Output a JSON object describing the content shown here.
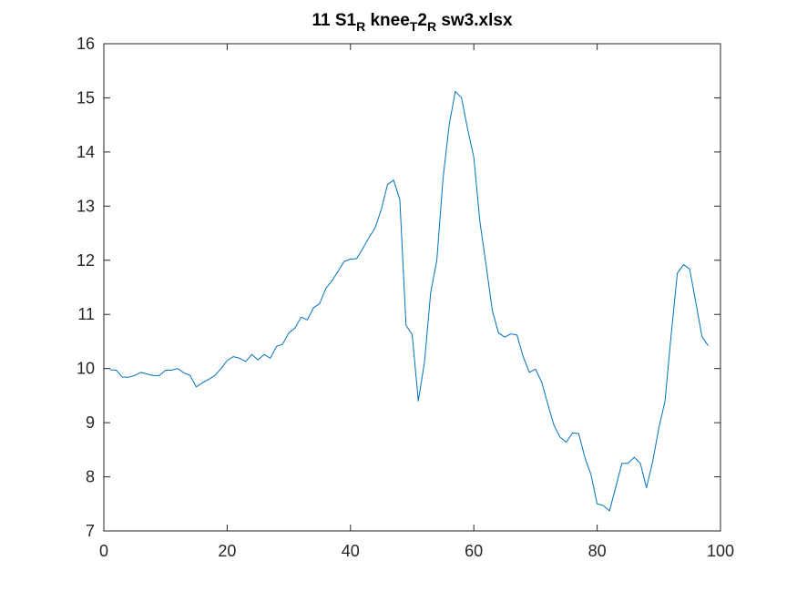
{
  "chart_data": {
    "type": "line",
    "title": {
      "parts": [
        {
          "text": "11 S1",
          "sub": false
        },
        {
          "text": "R",
          "sub": true
        },
        {
          "text": " knee",
          "sub": false
        },
        {
          "text": "T",
          "sub": true
        },
        {
          "text": "2",
          "sub": false
        },
        {
          "text": "R",
          "sub": true
        },
        {
          "text": " sw3.xlsx",
          "sub": false
        }
      ]
    },
    "xlabel": "",
    "ylabel": "",
    "xlim": [
      0,
      100
    ],
    "ylim": [
      7,
      16
    ],
    "xticks": [
      0,
      20,
      40,
      60,
      80,
      100
    ],
    "yticks": [
      7,
      8,
      9,
      10,
      11,
      12,
      13,
      14,
      15,
      16
    ],
    "grid": false,
    "line_color": "#0072BD",
    "axes_color": "#262626",
    "series": [
      {
        "x": [
          1,
          2,
          3,
          4,
          5,
          6,
          7,
          8,
          9,
          10,
          11,
          12,
          13,
          14,
          15,
          16,
          17,
          18,
          19,
          20,
          21,
          22,
          23,
          24,
          25,
          26,
          27,
          28,
          29,
          30,
          31,
          32,
          33,
          34,
          35,
          36,
          37,
          38,
          39,
          40,
          41,
          42,
          43,
          44,
          45,
          46,
          47,
          48,
          49,
          50,
          51,
          52,
          53,
          54,
          55,
          56,
          57,
          58,
          59,
          60,
          61,
          62,
          63,
          64,
          65,
          66,
          67,
          68,
          69,
          70,
          71,
          72,
          73,
          74,
          75,
          76,
          77,
          78,
          79,
          80,
          81,
          82,
          83,
          84,
          85,
          86,
          87,
          88,
          89,
          90,
          91,
          92,
          93,
          94,
          95,
          96,
          97,
          98
        ],
        "y": [
          9.98,
          9.97,
          9.84,
          9.84,
          9.87,
          9.93,
          9.9,
          9.87,
          9.87,
          9.97,
          9.97,
          10.0,
          9.92,
          9.87,
          9.66,
          9.74,
          9.8,
          9.87,
          10.0,
          10.15,
          10.22,
          10.19,
          10.13,
          10.26,
          10.16,
          10.26,
          10.19,
          10.41,
          10.45,
          10.66,
          10.75,
          10.95,
          10.9,
          11.12,
          11.2,
          11.48,
          11.62,
          11.8,
          11.98,
          12.02,
          12.03,
          12.22,
          12.42,
          12.6,
          12.94,
          13.4,
          13.48,
          13.12,
          10.8,
          10.63,
          9.4,
          10.12,
          11.4,
          12.0,
          13.5,
          14.5,
          15.12,
          15.0,
          14.42,
          13.9,
          12.7,
          11.9,
          11.07,
          10.66,
          10.58,
          10.64,
          10.62,
          10.22,
          9.93,
          9.99,
          9.75,
          9.34,
          8.95,
          8.73,
          8.64,
          8.81,
          8.8,
          8.36,
          8.04,
          7.5,
          7.47,
          7.37,
          7.8,
          8.25,
          8.25,
          8.36,
          8.25,
          7.8,
          8.28,
          8.9,
          9.4,
          10.62,
          11.76,
          11.92,
          11.84,
          11.22,
          10.59,
          10.42
        ]
      }
    ]
  }
}
